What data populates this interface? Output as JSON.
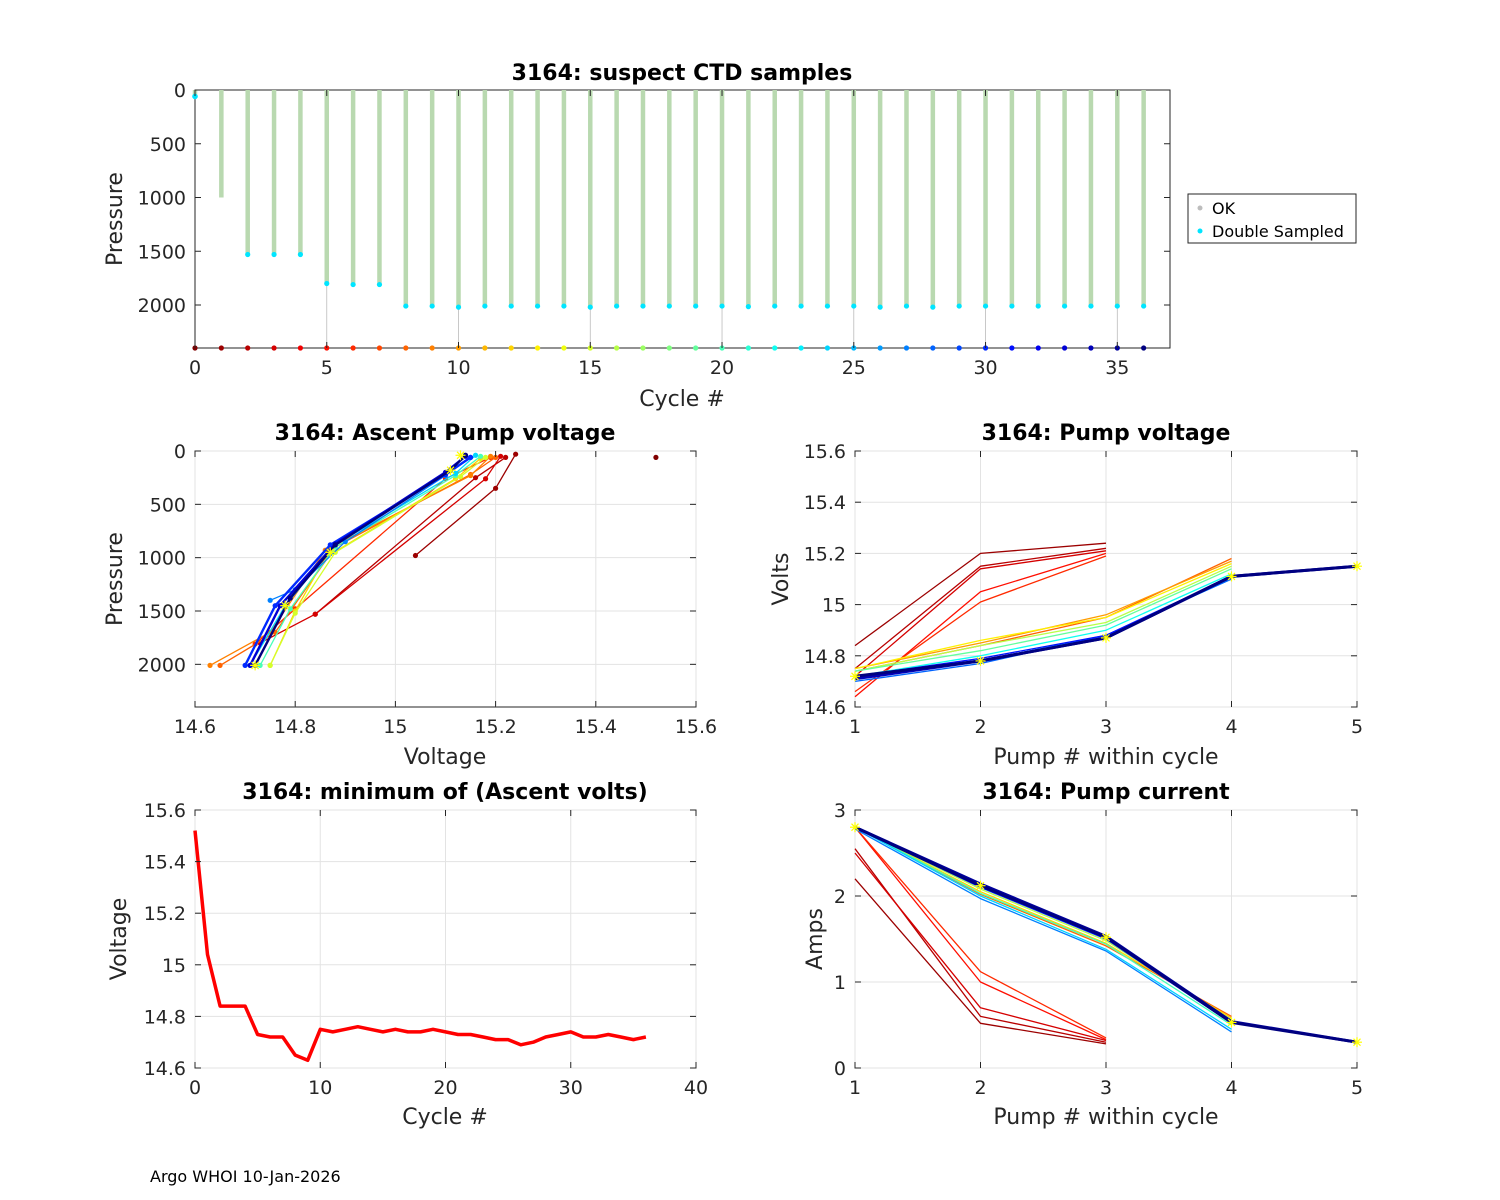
{
  "footer": "Argo WHOI 10-Jan-2026",
  "colors": {
    "ok": "#b9d9b0",
    "ok_marker": "#bdbdbd",
    "double": "#00e5ff",
    "red": "#ff0000",
    "yellow_star": "#ffff00"
  },
  "chart_data": [
    {
      "id": "ctd",
      "type": "scatter",
      "title": "3164: suspect CTD samples",
      "xlabel": "Cycle #",
      "ylabel": "Pressure",
      "xlim": [
        0,
        37
      ],
      "ylim": [
        0,
        2400
      ],
      "y_reversed": true,
      "xticks": [
        0,
        5,
        10,
        15,
        20,
        25,
        30,
        35
      ],
      "yticks": [
        0,
        500,
        1000,
        1500,
        2000
      ],
      "grid": false,
      "legend": {
        "position": "outside-right",
        "entries": [
          "OK",
          "Double Sampled"
        ]
      },
      "cycles": [
        0,
        1,
        2,
        3,
        4,
        5,
        6,
        7,
        8,
        9,
        10,
        11,
        12,
        13,
        14,
        15,
        16,
        17,
        18,
        19,
        20,
        21,
        22,
        23,
        24,
        25,
        26,
        27,
        28,
        29,
        30,
        31,
        32,
        33,
        34,
        35,
        36
      ],
      "max_pressure": [
        60,
        1000,
        1530,
        1530,
        1530,
        1800,
        1810,
        1810,
        2010,
        2010,
        2020,
        2010,
        2010,
        2010,
        2010,
        2020,
        2010,
        2010,
        2010,
        2010,
        2010,
        2015,
        2010,
        2010,
        2010,
        2010,
        2020,
        2010,
        2020,
        2010,
        2010,
        2010,
        2010,
        2010,
        2010,
        2010,
        2010
      ],
      "bottom_pressure": 2400
    },
    {
      "id": "ascent",
      "type": "line",
      "title": "3164: Ascent Pump voltage",
      "xlabel": "Voltage",
      "ylabel": "Pressure",
      "xlim": [
        14.6,
        15.6
      ],
      "ylim": [
        0,
        2400
      ],
      "y_reversed": true,
      "xticks": [
        14.6,
        14.8,
        15,
        15.2,
        15.4,
        15.6
      ],
      "xtick_labels": [
        "14.6",
        "14.8",
        "15",
        "15.2",
        "15.4",
        "15.6"
      ],
      "yticks": [
        0,
        500,
        1000,
        1500,
        2000
      ],
      "grid": true,
      "series": [
        {
          "cycle": 0,
          "x": [
            15.52
          ],
          "y": [
            60
          ]
        },
        {
          "cycle": 1,
          "x": [
            15.04,
            15.2,
            15.24
          ],
          "y": [
            980,
            350,
            30
          ]
        },
        {
          "cycle": 2,
          "x": [
            14.84,
            15.16,
            15.22
          ],
          "y": [
            1530,
            250,
            60
          ]
        },
        {
          "cycle": 3,
          "x": [
            14.73,
            14.84,
            15.18,
            15.21
          ],
          "y": [
            1800,
            1530,
            260,
            50
          ]
        },
        {
          "cycle": 6,
          "x": [
            14.72,
            14.8,
            15.1,
            15.19
          ],
          "y": [
            1810,
            1480,
            260,
            60
          ]
        },
        {
          "cycle": 8,
          "x": [
            14.65,
            14.76,
            14.88,
            15.15,
            15.2
          ],
          "y": [
            2010,
            1700,
            900,
            220,
            60
          ]
        },
        {
          "cycle": 9,
          "x": [
            14.63,
            14.75,
            14.86,
            15.15,
            15.19
          ],
          "y": [
            2010,
            1700,
            930,
            230,
            50
          ]
        },
        {
          "cycle": 12,
          "x": [
            14.75,
            14.8,
            14.86,
            15.12,
            15.17
          ],
          "y": [
            2010,
            1500,
            1000,
            260,
            70
          ]
        },
        {
          "cycle": 15,
          "x": [
            14.75,
            14.8,
            14.88,
            15.13,
            15.18
          ],
          "y": [
            2010,
            1520,
            950,
            240,
            60
          ]
        },
        {
          "cycle": 20,
          "x": [
            14.73,
            14.79,
            14.88,
            15.12,
            15.17
          ],
          "y": [
            2010,
            1480,
            900,
            230,
            50
          ]
        },
        {
          "cycle": 24,
          "x": [
            14.71,
            14.78,
            14.88,
            15.12,
            15.16
          ],
          "y": [
            2010,
            1450,
            880,
            210,
            40
          ]
        },
        {
          "cycle": 27,
          "x": [
            14.75,
            14.8,
            14.9,
            15.1,
            15.15
          ],
          "y": [
            1400,
            1300,
            850,
            230,
            60
          ]
        },
        {
          "cycle": 30,
          "x": [
            14.7,
            14.76,
            14.87,
            15.1,
            15.15
          ],
          "y": [
            2010,
            1450,
            880,
            220,
            60
          ]
        },
        {
          "cycle": 33,
          "x": [
            14.71,
            14.77,
            14.88,
            15.1,
            15.14
          ],
          "y": [
            2010,
            1450,
            870,
            200,
            50
          ]
        },
        {
          "cycle": 36,
          "x": [
            14.72,
            14.79,
            14.88,
            15.11,
            15.14
          ],
          "y": [
            2010,
            1380,
            880,
            180,
            40
          ]
        }
      ]
    },
    {
      "id": "pumpv",
      "type": "line",
      "title": "3164: Pump voltage",
      "xlabel": "Pump # within cycle",
      "ylabel": "Volts",
      "xlim": [
        1,
        5
      ],
      "ylim": [
        14.6,
        15.6
      ],
      "xticks": [
        1,
        2,
        3,
        4,
        5
      ],
      "yticks": [
        14.6,
        14.8,
        15,
        15.2,
        15.4,
        15.6
      ],
      "ytick_labels": [
        "14.6",
        "14.8",
        "15",
        "15.2",
        "15.4",
        "15.6"
      ],
      "grid": true,
      "series": [
        {
          "cycle": 1,
          "y": [
            14.84,
            15.2,
            15.24
          ]
        },
        {
          "cycle": 2,
          "y": [
            14.75,
            15.15,
            15.22
          ]
        },
        {
          "cycle": 3,
          "y": [
            14.72,
            15.14,
            15.21
          ]
        },
        {
          "cycle": 5,
          "y": [
            14.64,
            15.05,
            15.2
          ]
        },
        {
          "cycle": 6,
          "y": [
            14.66,
            15.01,
            15.19
          ]
        },
        {
          "cycle": 8,
          "y": [
            14.74,
            14.84,
            14.95,
            15.18
          ]
        },
        {
          "cycle": 10,
          "y": [
            14.75,
            14.85,
            14.96,
            15.17
          ]
        },
        {
          "cycle": 13,
          "y": [
            14.75,
            14.86,
            14.95,
            15.16
          ]
        },
        {
          "cycle": 16,
          "y": [
            14.74,
            14.84,
            14.93,
            15.15
          ]
        },
        {
          "cycle": 19,
          "y": [
            14.74,
            14.82,
            14.92,
            15.14
          ]
        },
        {
          "cycle": 22,
          "y": [
            14.72,
            14.8,
            14.9,
            15.12
          ]
        },
        {
          "cycle": 25,
          "y": [
            14.71,
            14.78,
            14.88,
            15.1
          ]
        },
        {
          "cycle": 28,
          "y": [
            14.7,
            14.77,
            14.88,
            15.1
          ]
        },
        {
          "cycle": 31,
          "y": [
            14.72,
            14.79,
            14.88,
            15.11
          ]
        },
        {
          "cycle": 34,
          "y": [
            14.71,
            14.78,
            14.87,
            15.11,
            15.15
          ]
        },
        {
          "cycle": 36,
          "y": [
            14.72,
            14.78,
            14.87,
            15.11,
            15.15
          ]
        }
      ]
    },
    {
      "id": "minv",
      "type": "line",
      "title": "3164: minimum of (Ascent volts)",
      "xlabel": "Cycle #",
      "ylabel": "Voltage",
      "xlim": [
        0,
        40
      ],
      "ylim": [
        14.6,
        15.6
      ],
      "xticks": [
        0,
        10,
        20,
        30,
        40
      ],
      "yticks": [
        14.6,
        14.8,
        15,
        15.2,
        15.4,
        15.6
      ],
      "ytick_labels": [
        "14.6",
        "14.8",
        "15",
        "15.2",
        "15.4",
        "15.6"
      ],
      "grid": true,
      "x": [
        0,
        1,
        2,
        3,
        4,
        5,
        6,
        7,
        8,
        9,
        10,
        11,
        12,
        13,
        14,
        15,
        16,
        17,
        18,
        19,
        20,
        21,
        22,
        23,
        24,
        25,
        26,
        27,
        28,
        29,
        30,
        31,
        32,
        33,
        34,
        35,
        36
      ],
      "y": [
        15.52,
        15.04,
        14.84,
        14.84,
        14.84,
        14.73,
        14.72,
        14.72,
        14.65,
        14.63,
        14.75,
        14.74,
        14.75,
        14.76,
        14.75,
        14.74,
        14.75,
        14.74,
        14.74,
        14.75,
        14.74,
        14.73,
        14.73,
        14.72,
        14.71,
        14.71,
        14.69,
        14.7,
        14.72,
        14.73,
        14.74,
        14.72,
        14.72,
        14.73,
        14.72,
        14.71,
        14.72
      ]
    },
    {
      "id": "pumpc",
      "type": "line",
      "title": "3164: Pump current",
      "xlabel": "Pump # within cycle",
      "ylabel": "Amps",
      "xlim": [
        1,
        5
      ],
      "ylim": [
        0,
        3
      ],
      "xticks": [
        1,
        2,
        3,
        4,
        5
      ],
      "yticks": [
        0,
        1,
        2,
        3
      ],
      "grid": true,
      "series": [
        {
          "cycle": 1,
          "y": [
            2.2,
            0.52,
            0.28
          ]
        },
        {
          "cycle": 2,
          "y": [
            2.55,
            0.6,
            0.3
          ]
        },
        {
          "cycle": 3,
          "y": [
            2.5,
            0.7,
            0.32
          ]
        },
        {
          "cycle": 5,
          "y": [
            2.8,
            1.0,
            0.33
          ]
        },
        {
          "cycle": 6,
          "y": [
            2.8,
            1.12,
            0.35
          ]
        },
        {
          "cycle": 8,
          "y": [
            2.8,
            2.02,
            1.42,
            0.6
          ]
        },
        {
          "cycle": 12,
          "y": [
            2.8,
            2.05,
            1.45,
            0.58
          ]
        },
        {
          "cycle": 16,
          "y": [
            2.8,
            2.08,
            1.48,
            0.56
          ]
        },
        {
          "cycle": 20,
          "y": [
            2.8,
            2.03,
            1.44,
            0.5
          ]
        },
        {
          "cycle": 24,
          "y": [
            2.8,
            2.0,
            1.38,
            0.45
          ]
        },
        {
          "cycle": 27,
          "y": [
            2.78,
            1.97,
            1.36,
            0.42
          ]
        },
        {
          "cycle": 30,
          "y": [
            2.8,
            2.1,
            1.5,
            0.52
          ]
        },
        {
          "cycle": 33,
          "y": [
            2.8,
            2.12,
            1.52,
            0.54
          ]
        },
        {
          "cycle": 35,
          "y": [
            2.8,
            2.14,
            1.53,
            0.54,
            0.3
          ]
        },
        {
          "cycle": 36,
          "y": [
            2.8,
            2.12,
            1.52,
            0.53,
            0.3
          ]
        }
      ]
    }
  ]
}
